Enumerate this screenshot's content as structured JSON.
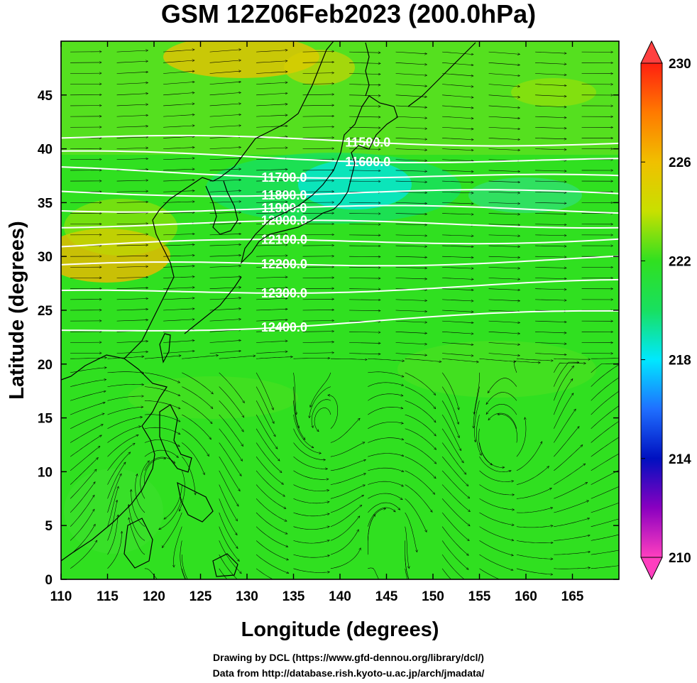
{
  "title": "GSM 12Z06Feb2023 (200.0hPa)",
  "axes": {
    "x_label": "Longitude (degrees)",
    "y_label": "Latitude  (degrees)",
    "x_range": [
      110,
      170
    ],
    "y_range": [
      0,
      50
    ],
    "x_ticks": [
      "110",
      "115",
      "120",
      "125",
      "130",
      "135",
      "140",
      "145",
      "150",
      "155",
      "160",
      "165"
    ],
    "y_ticks": [
      "0",
      "5",
      "10",
      "15",
      "20",
      "25",
      "30",
      "35",
      "40",
      "45"
    ]
  },
  "colorbar": {
    "labels": [
      "230",
      "226",
      "222",
      "218",
      "214",
      "210"
    ],
    "range": [
      210,
      230
    ],
    "colors": [
      "#ff3fbf",
      "#8a00c0",
      "#0010c0",
      "#1f6fff",
      "#00e8ff",
      "#18e060",
      "#30e020",
      "#c8e000",
      "#f0c000",
      "#ff7a00",
      "#ff2010"
    ]
  },
  "contours": [
    {
      "label": "11500.0",
      "lat_left": 41.0,
      "lat_right": 40.5
    },
    {
      "label": "11600.0",
      "lat_left": 39.5,
      "lat_right": 38.8
    },
    {
      "label": "11700.0",
      "lat_left": 38.0,
      "lat_right": 37.2
    },
    {
      "label": "11800.0",
      "lat_left": 36.0,
      "lat_right": 35.8
    },
    {
      "label": "11900.0",
      "lat_left": 34.5,
      "lat_right": 34.3
    },
    {
      "label": "12000.0",
      "lat_left": 33.0,
      "lat_right": 33.0
    },
    {
      "label": "12100.0",
      "lat_left": 31.0,
      "lat_right": 31.7
    },
    {
      "label": "12200.0",
      "lat_left": 29.0,
      "lat_right": 29.8
    },
    {
      "label": "12300.0",
      "lat_left": 26.5,
      "lat_right": 27.5
    },
    {
      "label": "12400.0",
      "lat_left": 23.0,
      "lat_right": 24.8
    }
  ],
  "credits": {
    "line1": "Drawing by DCL (https://www.gfd-dennou.org/library/dcl/)",
    "line2": "Data from http://database.rish.kyoto-u.ac.jp/arch/jmadata/"
  }
}
